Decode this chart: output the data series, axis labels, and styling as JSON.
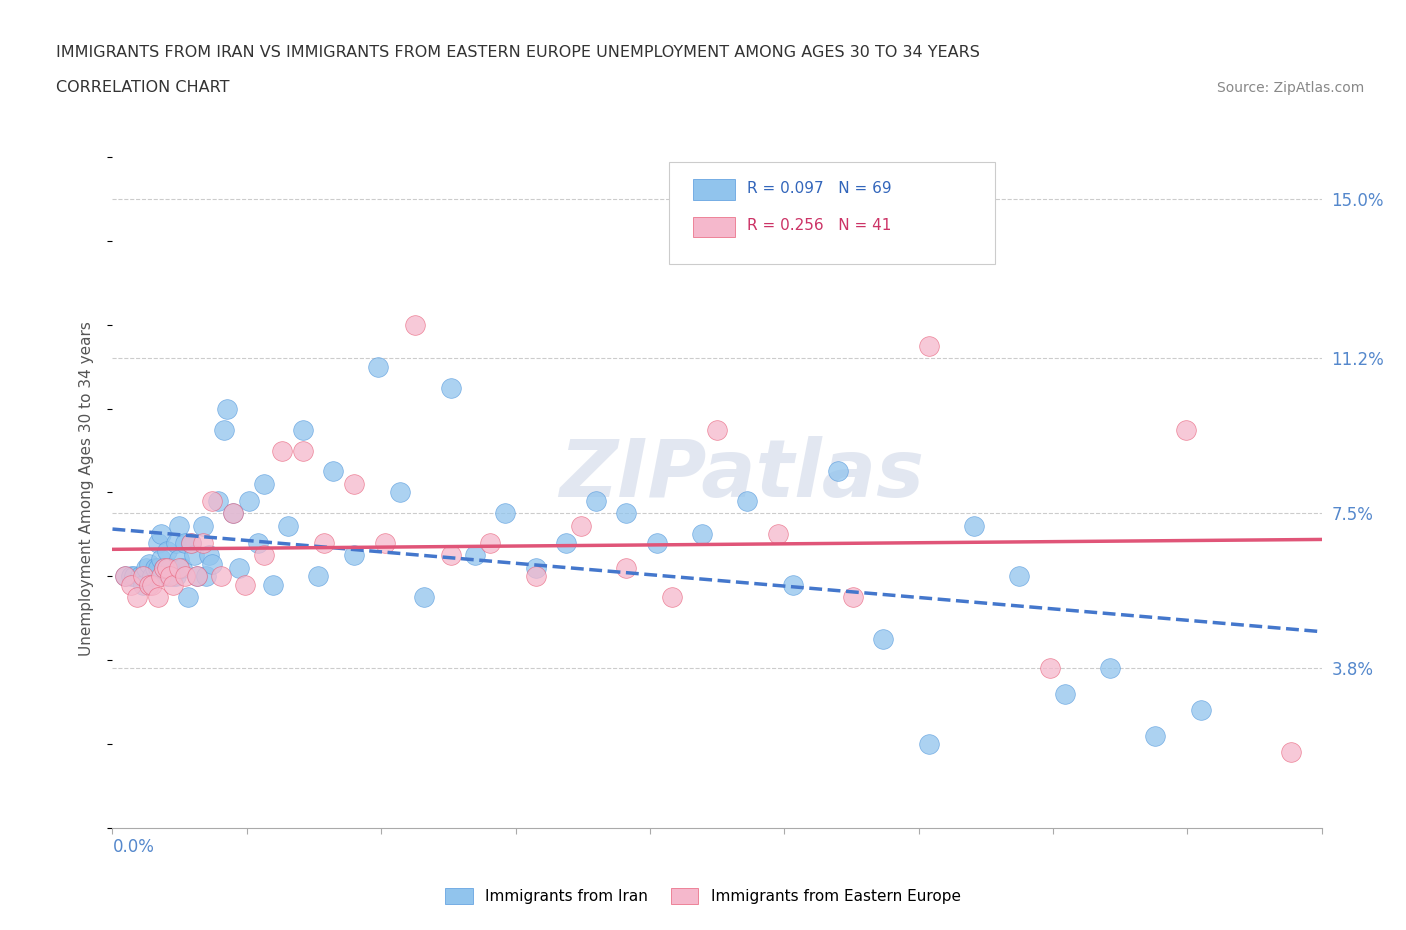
{
  "title_line1": "IMMIGRANTS FROM IRAN VS IMMIGRANTS FROM EASTERN EUROPE UNEMPLOYMENT AMONG AGES 30 TO 34 YEARS",
  "title_line2": "CORRELATION CHART",
  "source_text": "Source: ZipAtlas.com",
  "ylabel": "Unemployment Among Ages 30 to 34 years",
  "xlim": [
    0.0,
    0.4
  ],
  "ylim": [
    0.0,
    0.162
  ],
  "right_ytick_labels": [
    "3.8%",
    "7.5%",
    "11.2%",
    "15.0%"
  ],
  "right_ytick_values": [
    0.038,
    0.075,
    0.112,
    0.15
  ],
  "legend_iran_r": "R = 0.097",
  "legend_iran_n": "N = 69",
  "legend_ee_r": "R = 0.256",
  "legend_ee_n": "N = 41",
  "color_iran": "#91c4ed",
  "color_iran_edge": "#5599dd",
  "color_ee": "#f5b8cc",
  "color_ee_edge": "#e8607a",
  "color_iran_line": "#4477cc",
  "color_ee_line": "#e05578",
  "background_color": "#ffffff",
  "grid_color": "#cccccc",
  "watermark_text": "ZIPatlas",
  "iran_x": [
    0.004,
    0.006,
    0.007,
    0.009,
    0.01,
    0.011,
    0.012,
    0.013,
    0.014,
    0.015,
    0.015,
    0.016,
    0.016,
    0.017,
    0.018,
    0.018,
    0.019,
    0.02,
    0.021,
    0.021,
    0.022,
    0.022,
    0.023,
    0.024,
    0.025,
    0.026,
    0.027,
    0.028,
    0.03,
    0.031,
    0.032,
    0.033,
    0.035,
    0.037,
    0.038,
    0.04,
    0.042,
    0.045,
    0.048,
    0.05,
    0.053,
    0.058,
    0.063,
    0.068,
    0.073,
    0.08,
    0.088,
    0.095,
    0.103,
    0.112,
    0.12,
    0.13,
    0.14,
    0.15,
    0.16,
    0.17,
    0.18,
    0.195,
    0.21,
    0.225,
    0.24,
    0.255,
    0.27,
    0.285,
    0.3,
    0.315,
    0.33,
    0.345,
    0.36
  ],
  "iran_y": [
    0.06,
    0.06,
    0.06,
    0.06,
    0.058,
    0.062,
    0.063,
    0.06,
    0.062,
    0.062,
    0.068,
    0.064,
    0.07,
    0.062,
    0.06,
    0.066,
    0.062,
    0.06,
    0.06,
    0.068,
    0.064,
    0.072,
    0.062,
    0.068,
    0.055,
    0.068,
    0.065,
    0.06,
    0.072,
    0.06,
    0.065,
    0.063,
    0.078,
    0.095,
    0.1,
    0.075,
    0.062,
    0.078,
    0.068,
    0.082,
    0.058,
    0.072,
    0.095,
    0.06,
    0.085,
    0.065,
    0.11,
    0.08,
    0.055,
    0.105,
    0.065,
    0.075,
    0.062,
    0.068,
    0.078,
    0.075,
    0.068,
    0.07,
    0.078,
    0.058,
    0.085,
    0.045,
    0.02,
    0.072,
    0.06,
    0.032,
    0.038,
    0.022,
    0.028
  ],
  "ee_x": [
    0.004,
    0.006,
    0.008,
    0.01,
    0.012,
    0.013,
    0.015,
    0.016,
    0.017,
    0.018,
    0.019,
    0.02,
    0.022,
    0.024,
    0.026,
    0.028,
    0.03,
    0.033,
    0.036,
    0.04,
    0.044,
    0.05,
    0.056,
    0.063,
    0.07,
    0.08,
    0.09,
    0.1,
    0.112,
    0.125,
    0.14,
    0.155,
    0.17,
    0.185,
    0.2,
    0.22,
    0.245,
    0.27,
    0.31,
    0.355,
    0.39
  ],
  "ee_y": [
    0.06,
    0.058,
    0.055,
    0.06,
    0.058,
    0.058,
    0.055,
    0.06,
    0.062,
    0.062,
    0.06,
    0.058,
    0.062,
    0.06,
    0.068,
    0.06,
    0.068,
    0.078,
    0.06,
    0.075,
    0.058,
    0.065,
    0.09,
    0.09,
    0.068,
    0.082,
    0.068,
    0.12,
    0.065,
    0.068,
    0.06,
    0.072,
    0.062,
    0.055,
    0.095,
    0.07,
    0.055,
    0.115,
    0.038,
    0.095,
    0.018
  ]
}
